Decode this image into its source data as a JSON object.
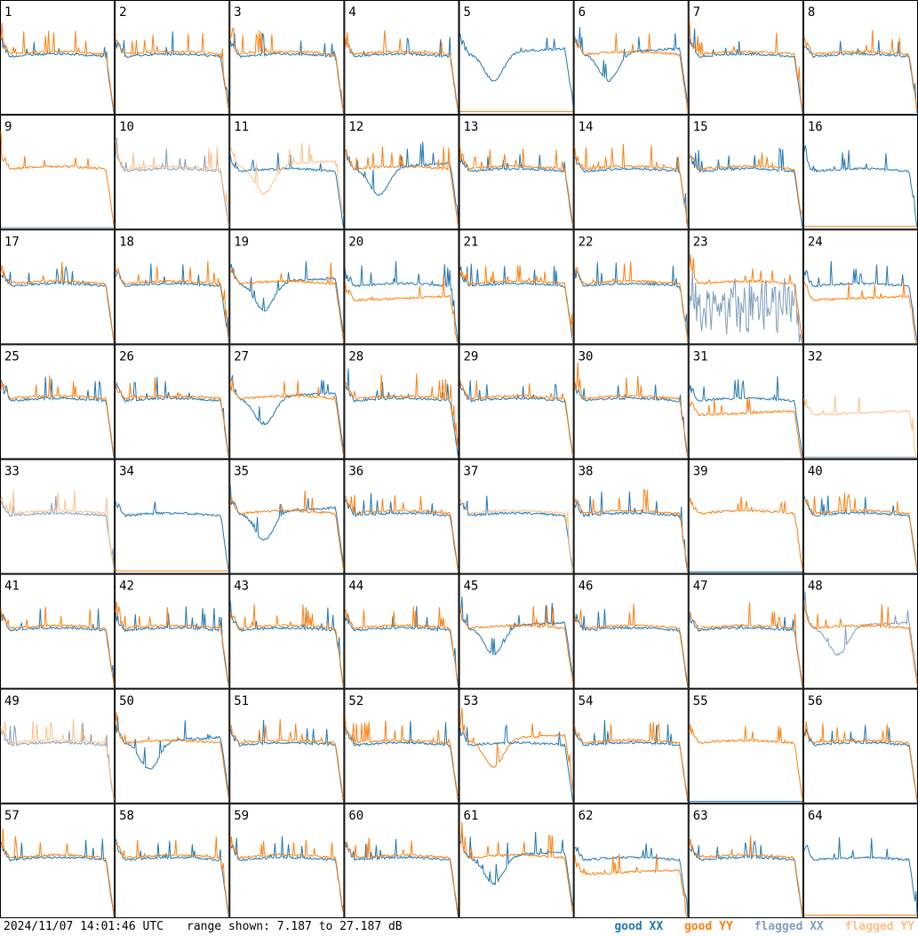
{
  "footer": {
    "timestamp": "2024/11/07 14:01:46 UTC",
    "range_text": "range shown: 7.187 to 27.187 dB"
  },
  "legend": {
    "good_xx": "good XX",
    "good_yy": "good YY",
    "flagged_xx": "flagged XX",
    "flagged_yy": "flagged YY"
  },
  "colors": {
    "good_xx": "#1f77b4",
    "good_yy": "#ff7f0e",
    "flagged_xx": "#7f9fbf",
    "flagged_yy": "#ffbf87"
  },
  "chart_data": {
    "type": "line",
    "grid_rows": 8,
    "grid_cols": 8,
    "ylim_db": [
      7.187,
      27.187
    ],
    "tiles": [
      {
        "n": 1,
        "xx": "good",
        "yy": "good",
        "shape_xx": "flat",
        "shape_yy": "flat"
      },
      {
        "n": 2,
        "xx": "good",
        "yy": "good",
        "shape_xx": "flat",
        "shape_yy": "flat"
      },
      {
        "n": 3,
        "xx": "good",
        "yy": "good",
        "shape_xx": "flat",
        "shape_yy": "flat"
      },
      {
        "n": 4,
        "xx": "good",
        "yy": "good",
        "shape_xx": "flat",
        "shape_yy": "flat"
      },
      {
        "n": 5,
        "xx": "good",
        "yy": "good",
        "shape_xx": "dip",
        "shape_yy": "dead"
      },
      {
        "n": 6,
        "xx": "good",
        "yy": "good",
        "shape_xx": "dip",
        "shape_yy": "flat"
      },
      {
        "n": 7,
        "xx": "good",
        "yy": "good",
        "shape_xx": "flat",
        "shape_yy": "flat"
      },
      {
        "n": 8,
        "xx": "good",
        "yy": "good",
        "shape_xx": "flat",
        "shape_yy": "flat"
      },
      {
        "n": 9,
        "xx": "flagged",
        "yy": "good",
        "shape_xx": "dead",
        "shape_yy": "flat"
      },
      {
        "n": 10,
        "xx": "flagged",
        "yy": "flagged",
        "shape_xx": "flat",
        "shape_yy": "flat"
      },
      {
        "n": 11,
        "xx": "good",
        "yy": "flagged",
        "shape_xx": "flat",
        "shape_yy": "dip"
      },
      {
        "n": 12,
        "xx": "good",
        "yy": "good",
        "shape_xx": "dip",
        "shape_yy": "flat"
      },
      {
        "n": 13,
        "xx": "good",
        "yy": "good",
        "shape_xx": "flat",
        "shape_yy": "flat"
      },
      {
        "n": 14,
        "xx": "good",
        "yy": "good",
        "shape_xx": "flat",
        "shape_yy": "flat"
      },
      {
        "n": 15,
        "xx": "good",
        "yy": "good",
        "shape_xx": "flat",
        "shape_yy": "flat"
      },
      {
        "n": 16,
        "xx": "good",
        "yy": "good",
        "shape_xx": "flat",
        "shape_yy": "dead"
      },
      {
        "n": 17,
        "xx": "good",
        "yy": "good",
        "shape_xx": "flat",
        "shape_yy": "flat"
      },
      {
        "n": 18,
        "xx": "good",
        "yy": "good",
        "shape_xx": "flat",
        "shape_yy": "flat"
      },
      {
        "n": 19,
        "xx": "good",
        "yy": "good",
        "shape_xx": "dip",
        "shape_yy": "flat"
      },
      {
        "n": 20,
        "xx": "good",
        "yy": "good",
        "shape_xx": "flat",
        "shape_yy": "low"
      },
      {
        "n": 21,
        "xx": "good",
        "yy": "good",
        "shape_xx": "flat",
        "shape_yy": "flat"
      },
      {
        "n": 22,
        "xx": "good",
        "yy": "good",
        "shape_xx": "flat",
        "shape_yy": "flat"
      },
      {
        "n": 23,
        "xx": "flagged",
        "yy": "good",
        "shape_xx": "noisy",
        "shape_yy": "flat"
      },
      {
        "n": 24,
        "xx": "good",
        "yy": "good",
        "shape_xx": "flat",
        "shape_yy": "low"
      },
      {
        "n": 25,
        "xx": "good",
        "yy": "good",
        "shape_xx": "flat",
        "shape_yy": "flat"
      },
      {
        "n": 26,
        "xx": "good",
        "yy": "good",
        "shape_xx": "flat",
        "shape_yy": "flat"
      },
      {
        "n": 27,
        "xx": "good",
        "yy": "good",
        "shape_xx": "dip",
        "shape_yy": "flat"
      },
      {
        "n": 28,
        "xx": "good",
        "yy": "good",
        "shape_xx": "flat",
        "shape_yy": "flat"
      },
      {
        "n": 29,
        "xx": "good",
        "yy": "good",
        "shape_xx": "flat",
        "shape_yy": "flat"
      },
      {
        "n": 30,
        "xx": "good",
        "yy": "good",
        "shape_xx": "flat",
        "shape_yy": "flat"
      },
      {
        "n": 31,
        "xx": "good",
        "yy": "good",
        "shape_xx": "flat",
        "shape_yy": "low"
      },
      {
        "n": 32,
        "xx": "flagged",
        "yy": "flagged",
        "shape_xx": "dead",
        "shape_yy": "low"
      },
      {
        "n": 33,
        "xx": "flagged",
        "yy": "flagged",
        "shape_xx": "flat",
        "shape_yy": "flat"
      },
      {
        "n": 34,
        "xx": "good",
        "yy": "good",
        "shape_xx": "flat",
        "shape_yy": "dead"
      },
      {
        "n": 35,
        "xx": "good",
        "yy": "good",
        "shape_xx": "dip",
        "shape_yy": "flat"
      },
      {
        "n": 36,
        "xx": "good",
        "yy": "good",
        "shape_xx": "flat",
        "shape_yy": "flat"
      },
      {
        "n": 37,
        "xx": "good",
        "yy": "flagged",
        "shape_xx": "flat",
        "shape_yy": "flat"
      },
      {
        "n": 38,
        "xx": "good",
        "yy": "good",
        "shape_xx": "flat",
        "shape_yy": "flat"
      },
      {
        "n": 39,
        "xx": "good",
        "yy": "good",
        "shape_xx": "dead",
        "shape_yy": "flat"
      },
      {
        "n": 40,
        "xx": "good",
        "yy": "good",
        "shape_xx": "flat",
        "shape_yy": "flat"
      },
      {
        "n": 41,
        "xx": "good",
        "yy": "good",
        "shape_xx": "flat",
        "shape_yy": "flat"
      },
      {
        "n": 42,
        "xx": "good",
        "yy": "good",
        "shape_xx": "flat",
        "shape_yy": "flat"
      },
      {
        "n": 43,
        "xx": "good",
        "yy": "good",
        "shape_xx": "flat",
        "shape_yy": "flat"
      },
      {
        "n": 44,
        "xx": "good",
        "yy": "good",
        "shape_xx": "flat",
        "shape_yy": "flat"
      },
      {
        "n": 45,
        "xx": "good",
        "yy": "good",
        "shape_xx": "dip",
        "shape_yy": "flat"
      },
      {
        "n": 46,
        "xx": "good",
        "yy": "good",
        "shape_xx": "flat",
        "shape_yy": "flat"
      },
      {
        "n": 47,
        "xx": "good",
        "yy": "good",
        "shape_xx": "flat",
        "shape_yy": "flat"
      },
      {
        "n": 48,
        "xx": "flagged",
        "yy": "good",
        "shape_xx": "dip",
        "shape_yy": "flat"
      },
      {
        "n": 49,
        "xx": "flagged",
        "yy": "flagged",
        "shape_xx": "flat",
        "shape_yy": "flat"
      },
      {
        "n": 50,
        "xx": "good",
        "yy": "good",
        "shape_xx": "dip",
        "shape_yy": "flat"
      },
      {
        "n": 51,
        "xx": "good",
        "yy": "good",
        "shape_xx": "flat",
        "shape_yy": "flat"
      },
      {
        "n": 52,
        "xx": "good",
        "yy": "good",
        "shape_xx": "flat",
        "shape_yy": "flat"
      },
      {
        "n": 53,
        "xx": "good",
        "yy": "good",
        "shape_xx": "flat",
        "shape_yy": "dip"
      },
      {
        "n": 54,
        "xx": "good",
        "yy": "good",
        "shape_xx": "flat",
        "shape_yy": "flat"
      },
      {
        "n": 55,
        "xx": "good",
        "yy": "good",
        "shape_xx": "dead",
        "shape_yy": "flat"
      },
      {
        "n": 56,
        "xx": "good",
        "yy": "good",
        "shape_xx": "flat",
        "shape_yy": "flat"
      },
      {
        "n": 57,
        "xx": "good",
        "yy": "good",
        "shape_xx": "flat",
        "shape_yy": "flat"
      },
      {
        "n": 58,
        "xx": "good",
        "yy": "good",
        "shape_xx": "flat",
        "shape_yy": "flat"
      },
      {
        "n": 59,
        "xx": "good",
        "yy": "good",
        "shape_xx": "flat",
        "shape_yy": "flat"
      },
      {
        "n": 60,
        "xx": "good",
        "yy": "good",
        "shape_xx": "flat",
        "shape_yy": "flat"
      },
      {
        "n": 61,
        "xx": "good",
        "yy": "good",
        "shape_xx": "dip",
        "shape_yy": "flat"
      },
      {
        "n": 62,
        "xx": "good",
        "yy": "good",
        "shape_xx": "flat",
        "shape_yy": "low"
      },
      {
        "n": 63,
        "xx": "good",
        "yy": "good",
        "shape_xx": "flat",
        "shape_yy": "flat"
      },
      {
        "n": 64,
        "xx": "good",
        "yy": "good",
        "shape_xx": "flat",
        "shape_yy": "dead"
      }
    ]
  }
}
